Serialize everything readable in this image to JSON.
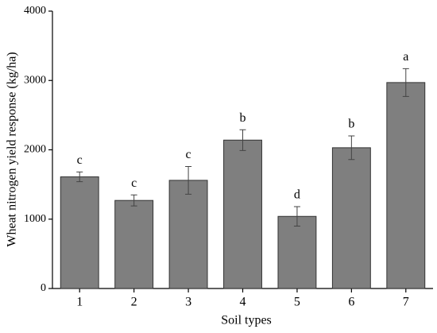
{
  "chart_data": {
    "type": "bar",
    "x_label": "Soil types",
    "y_label": "Wheat nitrogen yield response (kg/ha)",
    "categories": [
      "1",
      "2",
      "3",
      "4",
      "5",
      "6",
      "7"
    ],
    "values": [
      1610,
      1270,
      1560,
      2140,
      1040,
      2030,
      2970
    ],
    "errors": [
      70,
      80,
      200,
      150,
      140,
      170,
      200
    ],
    "significance": [
      "c",
      "c",
      "c",
      "b",
      "d",
      "b",
      "a"
    ],
    "color": "#7f7f7f",
    "ylim": [
      0,
      4000
    ],
    "yticks": [
      0,
      1000,
      2000,
      3000,
      4000
    ],
    "grid": false
  }
}
